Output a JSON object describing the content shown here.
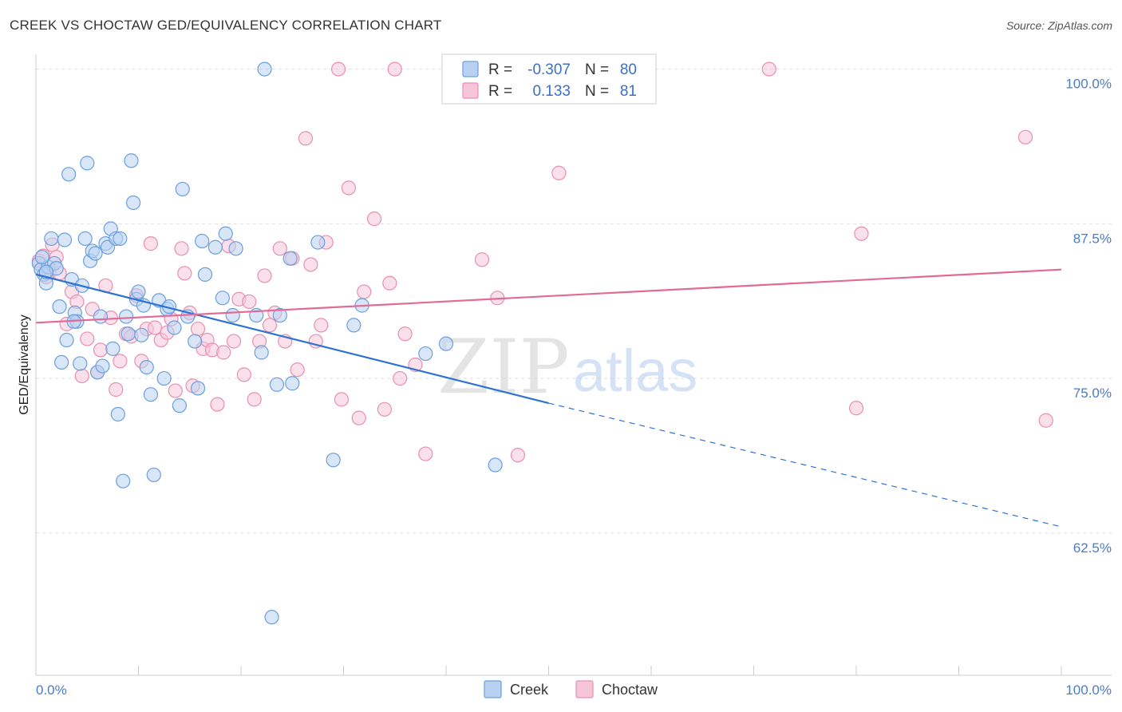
{
  "title": "CREEK VS CHOCTAW GED/EQUIVALENCY CORRELATION CHART",
  "source": "Source: ZipAtlas.com",
  "watermark": {
    "zip": "ZIP",
    "atlas": "atlas"
  },
  "colors": {
    "creek": "#6b9fde",
    "creek_fill": "#b8d1f2",
    "creek_line": "#2f72d0",
    "choctaw": "#e98fb0",
    "choctaw_fill": "#f6c6d8",
    "choctaw_line": "#e06b97",
    "tick_text": "#4a7cc9",
    "grid": "#dddddd"
  },
  "legend": {
    "creek": {
      "r_label": "R =",
      "r_value": "-0.307",
      "n_label": "N =",
      "n_value": "80"
    },
    "choctaw": {
      "r_label": "R =",
      "r_value": "0.133",
      "n_label": "N =",
      "n_value": "81"
    }
  },
  "chart_data": {
    "type": "scatter",
    "xlabel": "",
    "ylabel": "GED/Equivalency",
    "xlim": [
      0,
      100
    ],
    "ylim": [
      51,
      101.2
    ],
    "x_tick_labels": [
      "0.0%",
      "100.0%"
    ],
    "y_ticks": [
      62.5,
      75.0,
      87.5,
      100.0
    ],
    "y_tick_labels": [
      "62.5%",
      "75.0%",
      "87.5%",
      "100.0%"
    ],
    "grid": true,
    "legend_position": "top-center",
    "series": [
      {
        "name": "Creek",
        "r": -0.307,
        "n": 80,
        "trend": {
          "x0": 0,
          "y0": 83.4,
          "x1": 50,
          "y1": 73.0,
          "dashed_to": [
            100,
            63.0
          ]
        },
        "points": [
          [
            0.3,
            84.3
          ],
          [
            0.5,
            83.8
          ],
          [
            0.8,
            83.4
          ],
          [
            1.0,
            82.7
          ],
          [
            1.2,
            84.0
          ],
          [
            1.5,
            86.3
          ],
          [
            1.8,
            84.3
          ],
          [
            2.0,
            83.9
          ],
          [
            2.3,
            80.8
          ],
          [
            2.5,
            76.3
          ],
          [
            2.8,
            86.2
          ],
          [
            3.0,
            78.1
          ],
          [
            3.2,
            91.5
          ],
          [
            3.5,
            83.0
          ],
          [
            3.8,
            80.3
          ],
          [
            4.0,
            79.6
          ],
          [
            4.3,
            76.2
          ],
          [
            4.5,
            82.5
          ],
          [
            4.8,
            86.3
          ],
          [
            5.0,
            92.4
          ],
          [
            5.3,
            84.5
          ],
          [
            5.5,
            85.3
          ],
          [
            5.8,
            85.1
          ],
          [
            6.0,
            75.5
          ],
          [
            6.3,
            80.0
          ],
          [
            6.5,
            76.0
          ],
          [
            6.8,
            85.9
          ],
          [
            7.0,
            85.6
          ],
          [
            7.3,
            87.1
          ],
          [
            7.5,
            77.4
          ],
          [
            7.8,
            86.3
          ],
          [
            8.0,
            72.1
          ],
          [
            8.2,
            86.3
          ],
          [
            8.5,
            66.7
          ],
          [
            8.8,
            80.0
          ],
          [
            9.0,
            78.6
          ],
          [
            9.3,
            92.6
          ],
          [
            9.5,
            89.2
          ],
          [
            9.8,
            81.4
          ],
          [
            10.0,
            82.0
          ],
          [
            10.3,
            78.5
          ],
          [
            10.5,
            80.9
          ],
          [
            10.8,
            75.9
          ],
          [
            11.2,
            73.7
          ],
          [
            11.5,
            67.2
          ],
          [
            12.0,
            81.3
          ],
          [
            12.5,
            75.0
          ],
          [
            12.8,
            80.6
          ],
          [
            13.5,
            79.1
          ],
          [
            14.0,
            72.8
          ],
          [
            14.3,
            90.3
          ],
          [
            14.8,
            80.0
          ],
          [
            15.5,
            78.0
          ],
          [
            15.8,
            74.2
          ],
          [
            16.2,
            86.1
          ],
          [
            16.5,
            83.4
          ],
          [
            17.5,
            85.6
          ],
          [
            18.2,
            81.5
          ],
          [
            18.5,
            86.7
          ],
          [
            19.2,
            80.1
          ],
          [
            19.5,
            85.5
          ],
          [
            21.5,
            80.1
          ],
          [
            22.0,
            77.1
          ],
          [
            22.3,
            100.0
          ],
          [
            23.0,
            55.7
          ],
          [
            23.5,
            74.5
          ],
          [
            23.8,
            80.1
          ],
          [
            24.8,
            84.7
          ],
          [
            25.0,
            74.6
          ],
          [
            27.5,
            86.0
          ],
          [
            29.0,
            68.4
          ],
          [
            31.0,
            79.3
          ],
          [
            31.8,
            80.9
          ],
          [
            38.0,
            77.0
          ],
          [
            40.0,
            77.8
          ],
          [
            44.8,
            68.0
          ],
          [
            0.6,
            84.8
          ],
          [
            1.0,
            83.6
          ],
          [
            3.7,
            79.6
          ],
          [
            13.0,
            80.8
          ]
        ]
      },
      {
        "name": "Choctaw",
        "r": 0.133,
        "n": 81,
        "trend": {
          "x0": 0,
          "y0": 79.5,
          "x1": 100,
          "y1": 83.8
        },
        "points": [
          [
            0.3,
            84.5
          ],
          [
            0.7,
            84.9
          ],
          [
            1.0,
            83.2
          ],
          [
            1.3,
            83.6
          ],
          [
            1.6,
            85.8
          ],
          [
            2.0,
            84.8
          ],
          [
            2.3,
            83.5
          ],
          [
            3.0,
            79.4
          ],
          [
            3.5,
            82.0
          ],
          [
            4.0,
            81.2
          ],
          [
            4.5,
            75.2
          ],
          [
            5.0,
            78.2
          ],
          [
            5.5,
            80.6
          ],
          [
            6.0,
            75.5
          ],
          [
            6.3,
            77.3
          ],
          [
            6.8,
            82.5
          ],
          [
            7.3,
            79.9
          ],
          [
            7.8,
            74.1
          ],
          [
            8.2,
            76.4
          ],
          [
            8.8,
            78.6
          ],
          [
            9.3,
            78.4
          ],
          [
            9.8,
            81.7
          ],
          [
            10.3,
            76.4
          ],
          [
            10.8,
            79.0
          ],
          [
            11.2,
            85.9
          ],
          [
            11.6,
            79.1
          ],
          [
            12.2,
            78.1
          ],
          [
            12.8,
            78.7
          ],
          [
            13.2,
            79.8
          ],
          [
            13.6,
            74.0
          ],
          [
            14.2,
            85.5
          ],
          [
            14.5,
            83.5
          ],
          [
            15.0,
            80.3
          ],
          [
            15.3,
            74.4
          ],
          [
            15.8,
            79.0
          ],
          [
            16.3,
            77.4
          ],
          [
            16.7,
            78.1
          ],
          [
            17.2,
            77.3
          ],
          [
            17.7,
            72.9
          ],
          [
            18.3,
            77.1
          ],
          [
            18.8,
            85.7
          ],
          [
            19.3,
            78.0
          ],
          [
            19.8,
            81.4
          ],
          [
            20.3,
            75.3
          ],
          [
            20.8,
            81.2
          ],
          [
            21.3,
            73.3
          ],
          [
            21.8,
            78.0
          ],
          [
            22.3,
            83.3
          ],
          [
            22.8,
            79.3
          ],
          [
            23.3,
            80.3
          ],
          [
            23.8,
            85.5
          ],
          [
            24.3,
            78.0
          ],
          [
            25.0,
            84.7
          ],
          [
            25.5,
            75.7
          ],
          [
            26.3,
            94.4
          ],
          [
            26.8,
            84.2
          ],
          [
            27.3,
            78.0
          ],
          [
            27.8,
            79.3
          ],
          [
            28.3,
            86.0
          ],
          [
            29.5,
            100.0
          ],
          [
            29.8,
            73.3
          ],
          [
            30.5,
            90.4
          ],
          [
            31.5,
            71.8
          ],
          [
            32.0,
            82.0
          ],
          [
            33.0,
            87.9
          ],
          [
            34.0,
            72.5
          ],
          [
            34.5,
            82.7
          ],
          [
            35.0,
            100.0
          ],
          [
            35.5,
            75.0
          ],
          [
            36.0,
            78.6
          ],
          [
            37.0,
            76.1
          ],
          [
            38.0,
            68.9
          ],
          [
            43.5,
            84.6
          ],
          [
            45.0,
            81.5
          ],
          [
            47.0,
            68.8
          ],
          [
            51.0,
            91.6
          ],
          [
            71.5,
            100.0
          ],
          [
            80.0,
            72.6
          ],
          [
            80.5,
            86.7
          ],
          [
            96.5,
            94.5
          ],
          [
            98.5,
            71.6
          ]
        ]
      }
    ]
  }
}
